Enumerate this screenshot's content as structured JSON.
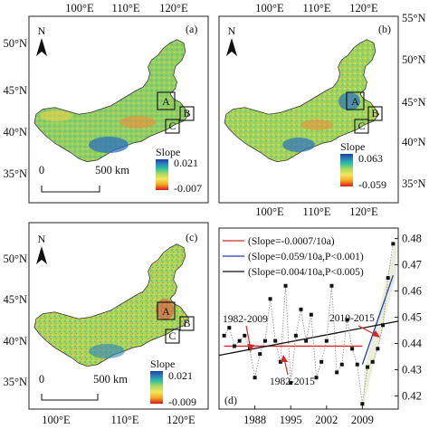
{
  "panels": [
    {
      "label": "(a)",
      "slope_title": "Slope",
      "slope_max": "0.021",
      "slope_min": "-0.007",
      "scale_zero": "0",
      "scale_km": "500 km",
      "top_ticks": [
        "100°E",
        "110°E",
        "120°E"
      ],
      "left_ticks": [
        "50°N",
        "45°N",
        "40°N",
        "35°N"
      ],
      "box_labels": [
        "A",
        "B",
        "C"
      ]
    },
    {
      "label": "(b)",
      "slope_title": "Slope",
      "slope_max": "0.063",
      "slope_min": "-0.059",
      "top_ticks": [
        "100°E",
        "110°E",
        "120°E"
      ],
      "right_ticks": [
        "55°N",
        "50°N",
        "45°N",
        "40°N",
        "35°N"
      ],
      "bottom_ticks": [
        "100°E",
        "110°E",
        "120°E"
      ],
      "box_labels": [
        "A",
        "B",
        "C"
      ]
    },
    {
      "label": "(c)",
      "slope_title": "Slope",
      "slope_max": "0.021",
      "slope_min": "-0.009",
      "scale_zero": "0",
      "scale_km": "500 km",
      "left_ticks": [
        "50°N",
        "45°N",
        "40°N",
        "35°N"
      ],
      "bottom_ticks": [
        "100°E",
        "110°E",
        "120°E"
      ],
      "box_labels": [
        "A",
        "B",
        "C"
      ]
    }
  ],
  "north_label": "N",
  "colors": {
    "ramp": [
      "#d7191c",
      "#f5a623",
      "#f2e85c",
      "#a9d860",
      "#2fc2a0",
      "#2b83ba",
      "#1a3fa8"
    ],
    "land": "#8fce62",
    "boundary": "#222222"
  },
  "chart_data": {
    "type": "line",
    "label": "(d)",
    "x_ticks": [
      1988,
      1995,
      2002,
      2009
    ],
    "xlim": [
      1981,
      2016
    ],
    "y_ticks": [
      0.42,
      0.43,
      0.44,
      0.45,
      0.46,
      0.47,
      0.48
    ],
    "ylim": [
      0.415,
      0.484
    ],
    "series": [
      {
        "values": [
          [
            1982,
            0.443
          ],
          [
            1983,
            0.446
          ],
          [
            1984,
            0.439
          ],
          [
            1985,
            0.441
          ],
          [
            1986,
            0.443
          ],
          [
            1987,
            0.438
          ],
          [
            1988,
            0.427
          ],
          [
            1989,
            0.436
          ],
          [
            1990,
            0.441
          ],
          [
            1991,
            0.457
          ],
          [
            1992,
            0.441
          ],
          [
            1993,
            0.433
          ],
          [
            1994,
            0.462
          ],
          [
            1995,
            0.425
          ],
          [
            1996,
            0.443
          ],
          [
            1997,
            0.453
          ],
          [
            1998,
            0.441
          ],
          [
            1999,
            0.451
          ],
          [
            2000,
            0.427
          ],
          [
            2001,
            0.433
          ],
          [
            2002,
            0.441
          ],
          [
            2003,
            0.462
          ],
          [
            2004,
            0.429
          ],
          [
            2005,
            0.432
          ],
          [
            2006,
            0.449
          ],
          [
            2007,
            0.438
          ],
          [
            2008,
            0.432
          ],
          [
            2009,
            0.417
          ],
          [
            2010,
            0.431
          ],
          [
            2011,
            0.433
          ],
          [
            2012,
            0.438
          ],
          [
            2013,
            0.447
          ],
          [
            2014,
            0.465
          ],
          [
            2015,
            0.478
          ]
        ]
      }
    ],
    "trends": [
      {
        "legend": "(Slope=-0.0007/10a)",
        "color": "#d62728",
        "x": [
          1982,
          2009
        ],
        "y": [
          0.439,
          0.439
        ]
      },
      {
        "legend": "(Slope=0.059/10a,P<0.001)",
        "color": "#1f3fbf",
        "x": [
          2009,
          2015
        ],
        "y": [
          0.432,
          0.466
        ]
      },
      {
        "legend": "(Slope=0.004/10a,P<0.005)",
        "color": "#111111",
        "x": [
          1981,
          2016
        ],
        "y": [
          0.4355,
          0.4485
        ]
      }
    ],
    "annotations": [
      "1982-2009",
      "2010-2015",
      "1982-2015"
    ]
  }
}
